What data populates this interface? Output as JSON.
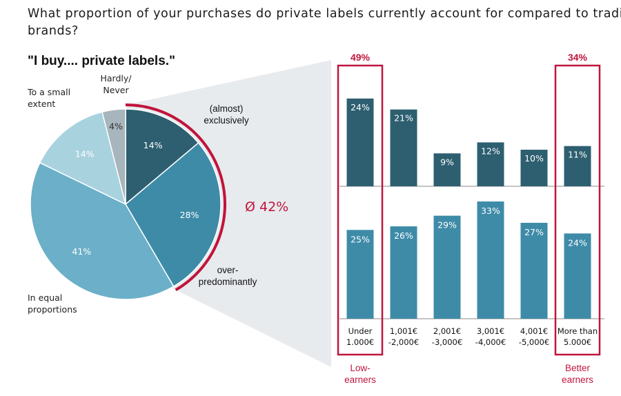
{
  "title_line1": "What proportion of your purchases do private labels currently account for compared to traditional",
  "title_line2": "brands?",
  "subtitle": "\"I buy.... private labels.\"",
  "colors": {
    "dark": "#2d5f70",
    "medium": "#3e8ba8",
    "light": "#6cafc8",
    "pale": "#a8d2de",
    "gray": "#a7b5bc",
    "accent": "#c0143c",
    "band": "#e8ebee"
  },
  "chart_data": [
    {
      "type": "pie",
      "title": "\"I buy.... private labels.\"",
      "slices": [
        {
          "label_lines": [
            "(almost)",
            "exclusively"
          ],
          "value": 14,
          "display": "14%",
          "color": "#2d5f70",
          "text_color": "#ffffff"
        },
        {
          "label_lines": [
            "over-",
            "predominantly"
          ],
          "value": 28,
          "display": "28%",
          "color": "#3e8ba8",
          "text_color": "#ffffff"
        },
        {
          "label_lines": [
            "In equal",
            "proportions"
          ],
          "value": 41,
          "display": "41%",
          "color": "#6cafc8",
          "text_color": "#ffffff"
        },
        {
          "label_lines": [
            "To a small",
            "extent"
          ],
          "value": 14,
          "display": "14%",
          "color": "#a8d2de",
          "text_color": "#ffffff"
        },
        {
          "label_lines": [
            "Hardly/",
            "Never"
          ],
          "value": 4,
          "display": "4%",
          "color": "#a7b5bc",
          "text_color": "#333333"
        }
      ],
      "highlight": {
        "text": "Ø 42%",
        "value": 42
      }
    },
    {
      "type": "bar",
      "stacking": "split-panels",
      "categories": [
        [
          "Under",
          "1.000€"
        ],
        [
          "1,001€",
          "-2,000€"
        ],
        [
          "2,001€",
          "-3,000€"
        ],
        [
          "3,001€",
          "-4,000€"
        ],
        [
          "4,001€",
          "-5,000€"
        ],
        [
          "More than",
          "5.000€"
        ]
      ],
      "series": [
        {
          "values": [
            24,
            21,
            9,
            12,
            10,
            11
          ],
          "color": "#2d5f70"
        },
        {
          "values": [
            25,
            26,
            29,
            33,
            27,
            24
          ],
          "color": "#3e8ba8"
        }
      ],
      "highlights": [
        {
          "category_index": 0,
          "total": "49%",
          "note_lines": [
            "Low-",
            "earners"
          ]
        },
        {
          "category_index": 5,
          "total": "34%",
          "note_lines": [
            "Better",
            "earners"
          ]
        }
      ]
    }
  ]
}
